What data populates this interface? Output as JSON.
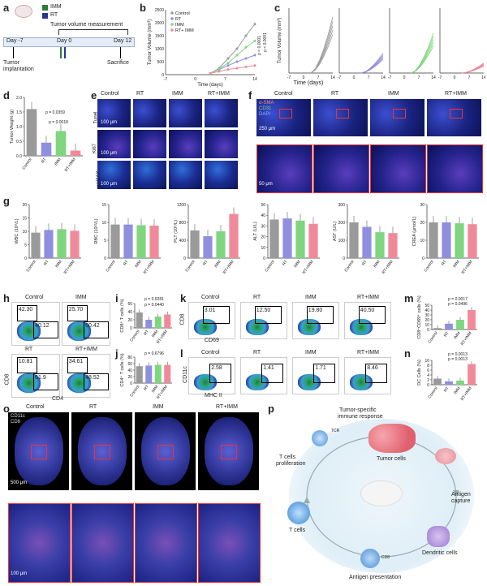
{
  "panels": {
    "a": "a",
    "b": "b",
    "c": "c",
    "d": "d",
    "e": "e",
    "f": "f",
    "g": "g",
    "h": "h",
    "i": "i",
    "j": "j",
    "k": "k",
    "l": "l",
    "m": "m",
    "n": "n",
    "o": "o",
    "p": "p"
  },
  "legend_a": {
    "imm": "IMM",
    "rt": "RT"
  },
  "timeline": {
    "title": "Tumor volume measurement",
    "day_m7": "Day -7",
    "day0": "Day 0",
    "day12": "Day 12",
    "implant": "Tumor\nimplantation",
    "implant1": "Tumor",
    "implant2": "implantation",
    "sacrifice": "Sacrifice"
  },
  "panel_b": {
    "ylabel": "Tumor Volume (mm³)",
    "xlabel": "Time (days)",
    "legend": [
      "Control",
      "RT",
      "IMM",
      "RT+ IMM"
    ],
    "p1": "p < 0.0001",
    "p2": "p = 0.0001",
    "xticks": [
      "-7",
      "0",
      "7",
      "14"
    ],
    "yticks": [
      "0",
      "500",
      "1000",
      "1500",
      "2000",
      "2500"
    ]
  },
  "panel_c": {
    "ylabel": "Tumor Volume (mm³)",
    "xlabel": "Time (days)",
    "xticks": [
      "-7",
      "0",
      "7",
      "14"
    ],
    "yticks": [
      "0",
      "500",
      "1000",
      "1500",
      "2000",
      "2500"
    ]
  },
  "panel_d": {
    "ylabel": "Tumor Weight (g)",
    "p1": "p = 0.0359",
    "p2": "p = 0.0018",
    "cats": [
      "Control",
      "RT",
      "IMM",
      "RT+IMM"
    ],
    "values": [
      1.6,
      0.45,
      0.85,
      0.18
    ],
    "yticks": [
      "0.0",
      "0.5",
      "1.0",
      "1.5",
      "2.0"
    ]
  },
  "panel_e": {
    "cols": [
      "Control",
      "RT",
      "IMM",
      "RT+IMM"
    ],
    "rows": [
      "Tunel",
      "Ki67",
      "γ-H2AX"
    ],
    "tunel_tag": "Tunel",
    "ki67_tag": "Ki67",
    "h2ax_tag": "γ-H2AX",
    "scale": "100 μm"
  },
  "panel_f": {
    "cols": [
      "Control",
      "RT",
      "IMM",
      "RT+IMM"
    ],
    "tags": [
      "α-SMA",
      "CD31",
      "DAPI"
    ],
    "scale1": "250 μm",
    "scale2": "50 μm"
  },
  "panel_g": {
    "cats": [
      "Control",
      "RT",
      "IMM",
      "RT+IMM"
    ],
    "charts": [
      {
        "ylabel": "WBC (10⁹/L)",
        "yticks": [
          "0",
          "5",
          "10",
          "15",
          "20"
        ],
        "values": [
          9.5,
          10.5,
          10.8,
          10.2
        ],
        "max": 20
      },
      {
        "ylabel": "RBC (10¹²/L)",
        "yticks": [
          "0",
          "5",
          "10",
          "15"
        ],
        "values": [
          9.4,
          9.4,
          9.2,
          9.1
        ],
        "max": 15
      },
      {
        "ylabel": "PLT (10⁹/L)",
        "yticks": [
          "0",
          "400",
          "800",
          "1200"
        ],
        "values": [
          620,
          490,
          600,
          990
        ],
        "max": 1200
      },
      {
        "ylabel": "ALT (U/L)",
        "yticks": [
          "0",
          "10",
          "20",
          "30",
          "40",
          "50"
        ],
        "values": [
          36,
          37,
          35,
          32
        ],
        "max": 50
      },
      {
        "ylabel": "AST (U/L)",
        "yticks": [
          "0",
          "100",
          "200",
          "300"
        ],
        "values": [
          200,
          175,
          145,
          140
        ],
        "max": 300
      },
      {
        "ylabel": "CREA (μmol/L)",
        "yticks": [
          "0",
          "10",
          "20",
          "30"
        ],
        "values": [
          20,
          20,
          19.5,
          19
        ],
        "max": 30
      }
    ]
  },
  "panel_h": {
    "labels": [
      "Control",
      "IMM",
      "RT",
      "RT+IMM"
    ],
    "vals": [
      [
        "42.30",
        "40.12"
      ],
      [
        "25.70",
        "60.42"
      ],
      [
        "10.81",
        "61.9"
      ],
      [
        "34.61",
        "48.52"
      ]
    ],
    "xlabel": "CD4",
    "ylabel": "CD8"
  },
  "panel_i": {
    "ylabel": "CD8⁺ T cells (%)",
    "p": "p = 0.9281",
    "p2": "p = 0.0440",
    "values": [
      38,
      20,
      28,
      33
    ],
    "yticks": [
      "0",
      "20",
      "40",
      "60"
    ]
  },
  "panel_j": {
    "ylabel": "CD4⁺ T cells (%)",
    "p": "p = 0.6796",
    "values": [
      52,
      54,
      56,
      56
    ],
    "yticks": [
      "0",
      "20",
      "40",
      "60",
      "80"
    ]
  },
  "panel_k": {
    "labels": [
      "Control",
      "RT",
      "IMM",
      "RT+IMM"
    ],
    "vals": [
      "3.01",
      "12.50",
      "19.80",
      "40.50"
    ],
    "xlabel": "CD69",
    "ylabel": "CD8"
  },
  "panel_l": {
    "labels": [
      "Control",
      "RT",
      "IMM",
      "RT+IMM"
    ],
    "vals": [
      "2.58",
      "1.41",
      "1.71",
      "8.46"
    ],
    "xlabel": "MHC II",
    "ylabel": "CD11c"
  },
  "panel_m": {
    "ylabel": "CD8⁺CD69⁺ cells (%)",
    "p1": "p = 0.0017",
    "p2": "p = 0.0496",
    "values": [
      3,
      12,
      20,
      40
    ],
    "yticks": [
      "0",
      "10",
      "20",
      "30",
      "40",
      "50"
    ]
  },
  "panel_n": {
    "ylabel": "DC Cells (%)",
    "p1": "p = 0.0013",
    "p2": "p = 0.0013",
    "values": [
      2.5,
      1.4,
      1.7,
      8.5
    ],
    "yticks": [
      "0",
      "2",
      "4",
      "6",
      "8",
      "10"
    ]
  },
  "panel_o": {
    "cols": [
      "Control",
      "RT",
      "IMM",
      "RT+IMM"
    ],
    "tags": [
      "CD11c",
      "CD8"
    ],
    "scale1": "500 μm",
    "scale2": "100 μm"
  },
  "panel_p": {
    "immune": "Tumor-specific\nimmune response",
    "immune1": "Tumor-specific",
    "immune2": "immune response",
    "tumor": "Tumor cells",
    "antigen1": "Antigen",
    "antigen2": "capture",
    "dc": "Dendritic cells",
    "present": "Antigen presentation",
    "tcells": "T cells",
    "prolif1": "T cells",
    "prolif2": "proliferation",
    "tcr": "TCR",
    "cd8": "CD8"
  },
  "colors": {
    "control": "#9a9a9a",
    "rt": "#8f8fe0",
    "imm": "#7fd67f",
    "rtimm": "#f08a9a",
    "dark": "#1a237e"
  },
  "xticks_cats": [
    "Control",
    "RT",
    "IMM",
    "RT+IMM"
  ]
}
